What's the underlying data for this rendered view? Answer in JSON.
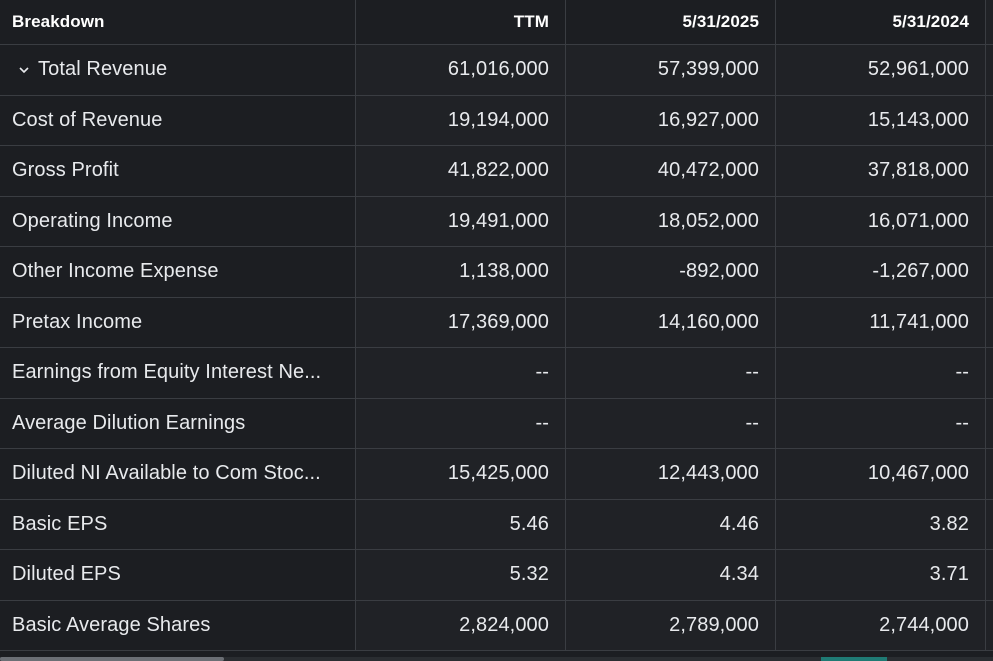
{
  "header": {
    "breakdown": "Breakdown",
    "col_ttm": "TTM",
    "col_2025": "5/31/2025",
    "col_2024": "5/31/2024"
  },
  "rows": [
    {
      "label": "Total Revenue",
      "ttm": "61,016,000",
      "y2025": "57,399,000",
      "y2024": "52,961,000",
      "expandable": true
    },
    {
      "label": "Cost of Revenue",
      "ttm": "19,194,000",
      "y2025": "16,927,000",
      "y2024": "15,143,000"
    },
    {
      "label": "Gross Profit",
      "ttm": "41,822,000",
      "y2025": "40,472,000",
      "y2024": "37,818,000"
    },
    {
      "label": "Operating Income",
      "ttm": "19,491,000",
      "y2025": "18,052,000",
      "y2024": "16,071,000"
    },
    {
      "label": "Other Income Expense",
      "ttm": "1,138,000",
      "y2025": "-892,000",
      "y2024": "-1,267,000"
    },
    {
      "label": "Pretax Income",
      "ttm": "17,369,000",
      "y2025": "14,160,000",
      "y2024": "11,741,000"
    },
    {
      "label": "Earnings from Equity Interest Ne...",
      "ttm": "--",
      "y2025": "--",
      "y2024": "--"
    },
    {
      "label": "Average Dilution Earnings",
      "ttm": "--",
      "y2025": "--",
      "y2024": "--"
    },
    {
      "label": "Diluted NI Available to Com Stoc...",
      "ttm": "15,425,000",
      "y2025": "12,443,000",
      "y2024": "10,467,000"
    },
    {
      "label": "Basic EPS",
      "ttm": "5.46",
      "y2025": "4.46",
      "y2024": "3.82"
    },
    {
      "label": "Diluted EPS",
      "ttm": "5.32",
      "y2025": "4.34",
      "y2024": "3.71"
    },
    {
      "label": "Basic Average Shares",
      "ttm": "2,824,000",
      "y2025": "2,789,000",
      "y2024": "2,744,000"
    }
  ],
  "icons": {
    "expand": "chevron-down-icon"
  }
}
